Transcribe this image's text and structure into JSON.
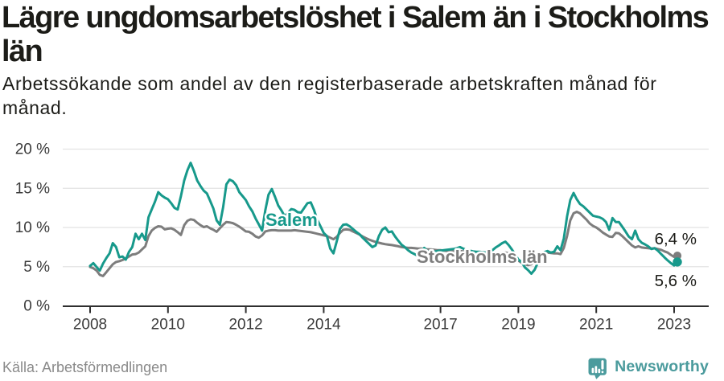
{
  "header": {
    "title_lines": [
      "Lägre ungdomsarbetslöshet i Salem än i Stockholms",
      "län"
    ],
    "subtitle_lines": [
      "Arbetssökande som andel av den registerbaserade arbetskraften månad för",
      "månad."
    ]
  },
  "footer": {
    "source": "Källa: Arbetsförmedlingen",
    "brand": "Newsworthy",
    "brand_color": "#4b9b9d",
    "brand_logo_icon": "speech-bubble-bar-chart-exclamation"
  },
  "chart_data": {
    "type": "line",
    "title": "Lägre ungdomsarbetslöshet i Salem än i Stockholms län",
    "subtitle": "Arbetssökande som andel av den registerbaserade arbetskraften månad för månad.",
    "source": "Källa: Arbetsförmedlingen",
    "x_unit": "month",
    "x_start": "2008-01",
    "x_end": "2023-02",
    "ylim": [
      0,
      20
    ],
    "grid": "horizontal",
    "yticks": [
      {
        "value": 0,
        "label": "0 %"
      },
      {
        "value": 5,
        "label": "5 %"
      },
      {
        "value": 10,
        "label": "10 %"
      },
      {
        "value": 15,
        "label": "15 %"
      },
      {
        "value": 20,
        "label": "20 %"
      }
    ],
    "xticks": [
      {
        "year": 2008,
        "label": "2008"
      },
      {
        "year": 2010,
        "label": "2010"
      },
      {
        "year": 2012,
        "label": "2012"
      },
      {
        "year": 2014,
        "label": "2014"
      },
      {
        "year": 2017,
        "label": "2017"
      },
      {
        "year": 2019,
        "label": "2019"
      },
      {
        "year": 2021,
        "label": "2021"
      },
      {
        "year": 2023,
        "label": "2023"
      }
    ],
    "series": [
      {
        "name": "Stockholms län",
        "color": "#7d7d7d",
        "end_label": "6,4 %",
        "end_value": 6.4,
        "label_pos": {
          "x": 518,
          "y": 327
        },
        "values": [
          4.95,
          4.8,
          4.5,
          3.95,
          3.8,
          4.3,
          4.8,
          5.3,
          5.6,
          5.7,
          5.85,
          6.05,
          6.3,
          6.55,
          6.6,
          6.8,
          7.2,
          7.6,
          8.9,
          9.6,
          9.95,
          10.15,
          10.1,
          9.75,
          9.85,
          9.9,
          9.7,
          9.4,
          9.05,
          10.3,
          10.85,
          11.05,
          10.95,
          10.6,
          10.3,
          10.05,
          10.15,
          9.9,
          9.7,
          9.45,
          9.9,
          10.35,
          10.7,
          10.65,
          10.55,
          10.35,
          10.1,
          9.8,
          9.5,
          9.45,
          9.2,
          8.85,
          8.7,
          9.0,
          9.5,
          9.6,
          9.65,
          9.65,
          9.6,
          9.6,
          9.6,
          9.6,
          9.6,
          9.65,
          9.6,
          9.55,
          9.5,
          9.45,
          9.4,
          9.3,
          9.2,
          9.1,
          9.0,
          8.9,
          8.7,
          8.5,
          8.8,
          9.3,
          9.7,
          9.75,
          9.7,
          9.5,
          9.3,
          9.1,
          8.85,
          8.65,
          8.45,
          8.3,
          8.15,
          8.05,
          7.95,
          7.87,
          7.8,
          7.75,
          7.68,
          7.6,
          7.5,
          7.45,
          7.4,
          7.4,
          7.35,
          7.3,
          7.3,
          7.25,
          7.2,
          7.2,
          7.15,
          7.1,
          7.1,
          7.05,
          7.0,
          7.0,
          7.0,
          7.0,
          7.0,
          6.95,
          6.9,
          6.85,
          6.8,
          6.75,
          6.7,
          6.65,
          6.6,
          6.6,
          6.6,
          6.65,
          6.7,
          6.75,
          6.8,
          6.7,
          6.4,
          6.1,
          5.75,
          5.5,
          5.3,
          5.2,
          5.3,
          5.7,
          6.2,
          6.6,
          6.75,
          6.8,
          6.75,
          6.7,
          6.7,
          6.6,
          7.4,
          8.9,
          10.9,
          11.8,
          12.0,
          11.8,
          11.4,
          11.0,
          10.5,
          10.2,
          10.0,
          9.7,
          9.35,
          9.1,
          8.85,
          8.8,
          9.3,
          9.25,
          8.9,
          8.5,
          8.1,
          7.7,
          7.45,
          7.6,
          7.45,
          7.4,
          7.35,
          7.3,
          7.35,
          7.25,
          7.15,
          6.95,
          6.8,
          6.5,
          6.25,
          6.4
        ]
      },
      {
        "name": "Salem",
        "color": "#17998b",
        "end_label": "5,6 %",
        "end_value": 5.6,
        "label_pos": {
          "x": 330,
          "y": 281
        },
        "values": [
          5.1,
          5.45,
          4.95,
          4.5,
          5.4,
          6.1,
          6.7,
          8.0,
          7.5,
          6.2,
          6.3,
          5.9,
          6.9,
          7.5,
          9.2,
          8.5,
          9.2,
          8.4,
          11.3,
          12.3,
          13.3,
          14.5,
          14.1,
          13.8,
          13.6,
          13.1,
          12.5,
          12.3,
          14.0,
          16.0,
          17.3,
          18.25,
          17.2,
          16.0,
          15.3,
          14.7,
          14.35,
          13.4,
          12.4,
          10.9,
          10.35,
          12.6,
          15.5,
          16.1,
          15.9,
          15.4,
          14.5,
          14.0,
          13.5,
          12.7,
          12.05,
          11.15,
          10.4,
          9.6,
          12.2,
          14.2,
          14.9,
          13.9,
          12.8,
          12.15,
          11.4,
          11.9,
          12.35,
          12.25,
          11.95,
          11.9,
          12.5,
          13.1,
          13.2,
          12.25,
          11.0,
          10.15,
          9.3,
          8.9,
          7.3,
          6.7,
          8.2,
          9.8,
          10.35,
          10.4,
          10.15,
          9.8,
          9.45,
          9.15,
          8.7,
          8.3,
          7.9,
          7.5,
          7.7,
          8.9,
          9.7,
          10.0,
          9.4,
          9.5,
          8.85,
          8.3,
          7.8,
          7.5,
          7.1,
          6.8,
          6.6,
          6.4,
          6.8,
          7.4,
          6.95,
          6.85,
          6.9,
          7.0,
          7.05,
          7.1,
          7.15,
          7.2,
          7.25,
          7.35,
          7.5,
          7.3,
          7.15,
          7.05,
          6.95,
          6.9,
          6.9,
          6.85,
          6.8,
          6.9,
          7.1,
          7.45,
          7.7,
          8.0,
          8.2,
          7.75,
          7.2,
          6.55,
          5.9,
          5.6,
          4.9,
          4.55,
          4.1,
          4.6,
          5.5,
          6.2,
          6.85,
          7.0,
          6.8,
          6.9,
          7.6,
          7.1,
          8.6,
          11.4,
          13.5,
          14.4,
          13.6,
          13.0,
          12.7,
          12.3,
          11.9,
          11.5,
          11.4,
          11.3,
          11.1,
          10.7,
          9.7,
          11.2,
          10.7,
          10.7,
          10.1,
          9.5,
          8.85,
          8.5,
          9.6,
          8.5,
          8.05,
          7.85,
          7.6,
          7.25,
          7.35,
          7.05,
          6.6,
          6.2,
          5.8,
          5.45,
          5.15,
          5.6
        ]
      }
    ]
  }
}
